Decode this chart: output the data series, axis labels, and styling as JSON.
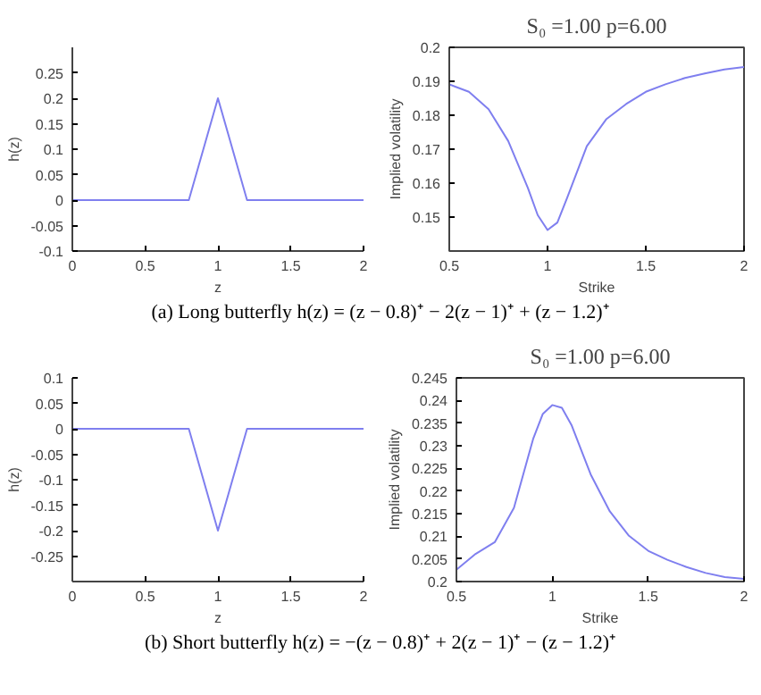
{
  "chart_data": [
    {
      "type": "line",
      "xlabel": "z",
      "ylabel": "h(z)",
      "x": [
        0,
        0.8,
        1,
        1.2,
        2
      ],
      "series": [
        {
          "color": "#7f7fef",
          "values": [
            0,
            0,
            0.2,
            0,
            0
          ]
        }
      ],
      "xlim": [
        0,
        2
      ],
      "xticks": [
        0,
        0.5,
        1,
        1.5,
        2
      ],
      "ylim": [
        -0.1,
        0.3
      ],
      "yticks": [
        -0.1,
        -0.05,
        0,
        0.05,
        0.1,
        0.15,
        0.2,
        0.25
      ],
      "annotations": [
        "(a) Long butterfly h(z) = (z − 0.8)⁺ − 2(z − 1)⁺ + (z − 1.2)⁺"
      ]
    },
    {
      "type": "line",
      "title": "S₀ =1.00 p=6.00",
      "xlabel": "Strike",
      "ylabel": "Implied volatility",
      "x": [
        0.5,
        0.6,
        0.7,
        0.8,
        0.9,
        0.95,
        1.0,
        1.05,
        1.1,
        1.2,
        1.3,
        1.4,
        1.5,
        1.6,
        1.7,
        1.8,
        1.9,
        2.0
      ],
      "series": [
        {
          "color": "#7f7fef",
          "values": [
            0.1891,
            0.1869,
            0.1818,
            0.1724,
            0.1586,
            0.1506,
            0.1462,
            0.1484,
            0.1557,
            0.1709,
            0.1789,
            0.1833,
            0.1869,
            0.1891,
            0.191,
            0.1923,
            0.1935,
            0.1942
          ]
        }
      ],
      "xlim": [
        0.5,
        2
      ],
      "xticks": [
        0.5,
        1,
        1.5,
        2
      ],
      "ylim": [
        0.14,
        0.2
      ],
      "yticks": [
        0.15,
        0.16,
        0.17,
        0.18,
        0.19,
        0.2
      ]
    },
    {
      "type": "line",
      "xlabel": "z",
      "ylabel": "h(z)",
      "x": [
        0,
        0.8,
        1,
        1.2,
        2
      ],
      "series": [
        {
          "color": "#7f7fef",
          "values": [
            0,
            0,
            -0.2,
            0,
            0
          ]
        }
      ],
      "xlim": [
        0,
        2
      ],
      "xticks": [
        0,
        0.5,
        1,
        1.5,
        2
      ],
      "ylim": [
        -0.3,
        0.1
      ],
      "yticks": [
        -0.25,
        -0.2,
        -0.15,
        -0.1,
        -0.05,
        0,
        0.05,
        0.1
      ],
      "annotations": [
        "(b) Short butterfly h(z) = −(z − 0.8)⁺ + 2(z − 1)⁺ − (z − 1.2)⁺"
      ]
    },
    {
      "type": "line",
      "title": "S₀ =1.00 p=6.00",
      "xlabel": "Strike",
      "ylabel": "Implied volatility",
      "x": [
        0.5,
        0.6,
        0.7,
        0.8,
        0.9,
        0.95,
        1.0,
        1.05,
        1.1,
        1.2,
        1.3,
        1.4,
        1.5,
        1.6,
        1.7,
        1.8,
        1.9,
        2.0
      ],
      "series": [
        {
          "color": "#7f7fef",
          "values": [
            0.2026,
            0.2061,
            0.2087,
            0.2163,
            0.2315,
            0.237,
            0.239,
            0.2384,
            0.2346,
            0.2237,
            0.2155,
            0.2101,
            0.2068,
            0.2048,
            0.2032,
            0.2019,
            0.201,
            0.2006
          ]
        }
      ],
      "xlim": [
        0.5,
        2
      ],
      "xticks": [
        0.5,
        1,
        1.5,
        2
      ],
      "ylim": [
        0.2,
        0.245
      ],
      "yticks": [
        0.2,
        0.205,
        0.21,
        0.215,
        0.22,
        0.225,
        0.23,
        0.235,
        0.24,
        0.245
      ]
    }
  ]
}
